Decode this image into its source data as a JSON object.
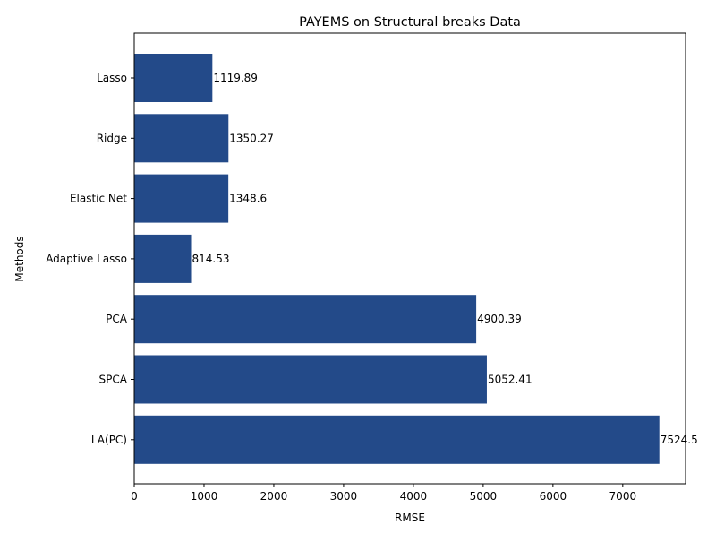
{
  "chart_data": {
    "type": "bar",
    "orientation": "horizontal",
    "title": "PAYEMS on Structural breaks Data",
    "xlabel": "RMSE",
    "ylabel": "Methods",
    "categories": [
      "Lasso",
      "Ridge",
      "Elastic Net",
      "Adaptive Lasso",
      "PCA",
      "SPCA",
      "LA(PC)"
    ],
    "values": [
      1119.89,
      1350.27,
      1348.6,
      814.53,
      4900.39,
      5052.41,
      7524.5
    ],
    "value_labels": [
      "1119.89",
      "1350.27",
      "1348.6",
      "814.53",
      "4900.39",
      "5052.41",
      "7524.5"
    ],
    "xlim": [
      0,
      7900
    ],
    "xticks": [
      0,
      1000,
      2000,
      3000,
      4000,
      5000,
      6000,
      7000
    ],
    "xtick_labels": [
      "0",
      "1000",
      "2000",
      "3000",
      "4000",
      "5000",
      "6000",
      "7000"
    ],
    "bar_color": "#234a89",
    "grid": false,
    "legend": "none"
  }
}
